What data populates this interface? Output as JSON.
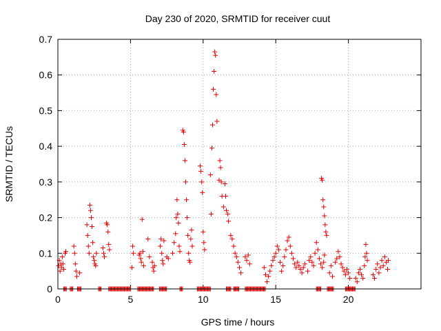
{
  "chart_data": {
    "type": "scatter",
    "title": "Day 230 of 2020, SRMTID for receiver cuut",
    "xlabel": "GPS time / hours",
    "ylabel": "SRMTID / TECUs",
    "xlim": [
      0,
      25
    ],
    "ylim": [
      0,
      0.7
    ],
    "x_ticks": [
      0,
      5,
      10,
      15,
      20
    ],
    "x_tick_labels": [
      "0",
      "5",
      "10",
      "15",
      "20"
    ],
    "y_ticks": [
      0,
      0.1,
      0.2,
      0.3,
      0.4,
      0.5,
      0.6,
      0.7
    ],
    "y_tick_labels": [
      "0",
      "0.1",
      "0.2",
      "0.3",
      "0.4",
      "0.5",
      "0.6",
      "0.7"
    ],
    "grid": true,
    "marker": "+",
    "marker_color": "#e00000",
    "series": [
      {
        "name": "SRMTID",
        "points": [
          [
            0.05,
            0.065
          ],
          [
            0.1,
            0.08
          ],
          [
            0.15,
            0.05
          ],
          [
            0.2,
            0.07
          ],
          [
            0.25,
            0.06
          ],
          [
            0.3,
            0.09
          ],
          [
            0.35,
            0.07
          ],
          [
            0.4,
            0.055
          ],
          [
            0.5,
            0.1
          ],
          [
            0.55,
            0.105
          ],
          [
            1.1,
            0.12
          ],
          [
            1.15,
            0.1
          ],
          [
            1.2,
            0.07
          ],
          [
            1.25,
            0.05
          ],
          [
            1.3,
            0.035
          ],
          [
            1.5,
            0.045
          ],
          [
            2.0,
            0.18
          ],
          [
            2.05,
            0.15
          ],
          [
            2.1,
            0.12
          ],
          [
            2.15,
            0.1
          ],
          [
            2.2,
            0.235
          ],
          [
            2.25,
            0.22
          ],
          [
            2.3,
            0.2
          ],
          [
            2.35,
            0.175
          ],
          [
            2.4,
            0.13
          ],
          [
            2.45,
            0.09
          ],
          [
            2.5,
            0.08
          ],
          [
            2.55,
            0.07
          ],
          [
            2.6,
            0.065
          ],
          [
            2.65,
            0.1
          ],
          [
            3.1,
            0.115
          ],
          [
            3.15,
            0.1
          ],
          [
            3.2,
            0.09
          ],
          [
            3.35,
            0.185
          ],
          [
            3.4,
            0.18
          ],
          [
            3.45,
            0.16
          ],
          [
            3.5,
            0.125
          ],
          [
            3.55,
            0.11
          ],
          [
            5.1,
            0.06
          ],
          [
            5.15,
            0.12
          ],
          [
            5.2,
            0.1
          ],
          [
            5.6,
            0.095
          ],
          [
            5.65,
            0.1
          ],
          [
            5.7,
            0.085
          ],
          [
            5.75,
            0.075
          ],
          [
            5.8,
            0.195
          ],
          [
            5.85,
            0.105
          ],
          [
            5.9,
            0.065
          ],
          [
            6.2,
            0.14
          ],
          [
            6.3,
            0.09
          ],
          [
            6.5,
            0.075
          ],
          [
            6.55,
            0.06
          ],
          [
            6.6,
            0.05
          ],
          [
            6.65,
            0.065
          ],
          [
            7.05,
            0.12
          ],
          [
            7.1,
            0.14
          ],
          [
            7.15,
            0.1
          ],
          [
            7.2,
            0.08
          ],
          [
            7.25,
            0.07
          ],
          [
            7.3,
            0.135
          ],
          [
            7.5,
            0.09
          ],
          [
            7.6,
            0.085
          ],
          [
            7.9,
            0.1
          ],
          [
            8.0,
            0.13
          ],
          [
            8.1,
            0.155
          ],
          [
            8.15,
            0.2
          ],
          [
            8.2,
            0.25
          ],
          [
            8.25,
            0.21
          ],
          [
            8.3,
            0.185
          ],
          [
            8.35,
            0.12
          ],
          [
            8.4,
            0.105
          ],
          [
            8.6,
            0.445
          ],
          [
            8.65,
            0.44
          ],
          [
            8.7,
            0.405
          ],
          [
            8.75,
            0.36
          ],
          [
            8.8,
            0.3
          ],
          [
            8.85,
            0.25
          ],
          [
            8.9,
            0.2
          ],
          [
            8.95,
            0.15
          ],
          [
            9.0,
            0.1
          ],
          [
            9.05,
            0.08
          ],
          [
            9.1,
            0.075
          ],
          [
            9.15,
            0.14
          ],
          [
            9.2,
            0.165
          ],
          [
            9.25,
            0.12
          ],
          [
            9.8,
            0.345
          ],
          [
            9.85,
            0.33
          ],
          [
            9.9,
            0.3
          ],
          [
            9.95,
            0.27
          ],
          [
            10.0,
            0.16
          ],
          [
            10.05,
            0.13
          ],
          [
            10.1,
            0.11
          ],
          [
            10.5,
            0.32
          ],
          [
            10.55,
            0.21
          ],
          [
            10.6,
            0.395
          ],
          [
            10.65,
            0.46
          ],
          [
            10.7,
            0.56
          ],
          [
            10.75,
            0.61
          ],
          [
            10.8,
            0.665
          ],
          [
            10.85,
            0.655
          ],
          [
            10.9,
            0.545
          ],
          [
            10.95,
            0.47
          ],
          [
            11.1,
            0.305
          ],
          [
            11.15,
            0.36
          ],
          [
            11.2,
            0.34
          ],
          [
            11.25,
            0.3
          ],
          [
            11.3,
            0.26
          ],
          [
            11.4,
            0.23
          ],
          [
            11.5,
            0.295
          ],
          [
            11.55,
            0.26
          ],
          [
            11.6,
            0.22
          ],
          [
            11.7,
            0.21
          ],
          [
            11.75,
            0.19
          ],
          [
            11.9,
            0.15
          ],
          [
            12.0,
            0.14
          ],
          [
            12.1,
            0.12
          ],
          [
            12.2,
            0.1
          ],
          [
            12.3,
            0.09
          ],
          [
            12.4,
            0.075
          ],
          [
            12.5,
            0.06
          ],
          [
            12.6,
            0.045
          ],
          [
            12.9,
            0.09
          ],
          [
            13.0,
            0.08
          ],
          [
            13.1,
            0.095
          ],
          [
            13.2,
            0.07
          ],
          [
            14.2,
            0.06
          ],
          [
            14.3,
            0.04
          ],
          [
            14.4,
            0.02
          ],
          [
            14.5,
            0.035
          ],
          [
            14.6,
            0.05
          ],
          [
            14.7,
            0.065
          ],
          [
            14.8,
            0.08
          ],
          [
            14.9,
            0.09
          ],
          [
            15.0,
            0.1
          ],
          [
            15.1,
            0.12
          ],
          [
            15.2,
            0.11
          ],
          [
            15.3,
            0.075
          ],
          [
            15.4,
            0.05
          ],
          [
            15.5,
            0.065
          ],
          [
            15.6,
            0.09
          ],
          [
            15.7,
            0.11
          ],
          [
            15.8,
            0.135
          ],
          [
            15.9,
            0.145
          ],
          [
            16.0,
            0.12
          ],
          [
            16.1,
            0.1
          ],
          [
            16.2,
            0.085
          ],
          [
            16.3,
            0.07
          ],
          [
            16.4,
            0.06
          ],
          [
            16.5,
            0.075
          ],
          [
            16.6,
            0.065
          ],
          [
            16.7,
            0.055
          ],
          [
            16.8,
            0.045
          ],
          [
            16.9,
            0.06
          ],
          [
            17.0,
            0.07
          ],
          [
            17.2,
            0.05
          ],
          [
            17.3,
            0.08
          ],
          [
            17.4,
            0.09
          ],
          [
            17.5,
            0.075
          ],
          [
            17.6,
            0.065
          ],
          [
            17.7,
            0.1
          ],
          [
            17.8,
            0.13
          ],
          [
            17.9,
            0.11
          ],
          [
            18.0,
            0.085
          ],
          [
            18.1,
            0.07
          ],
          [
            18.2,
            0.06
          ],
          [
            18.3,
            0.075
          ],
          [
            18.35,
            0.095
          ],
          [
            18.15,
            0.31
          ],
          [
            18.2,
            0.305
          ],
          [
            18.25,
            0.25
          ],
          [
            18.3,
            0.23
          ],
          [
            18.35,
            0.205
          ],
          [
            18.4,
            0.18
          ],
          [
            18.45,
            0.16
          ],
          [
            18.5,
            0.15
          ],
          [
            18.7,
            0.045
          ],
          [
            18.8,
            0.065
          ],
          [
            18.9,
            0.035
          ],
          [
            19.1,
            0.075
          ],
          [
            19.2,
            0.085
          ],
          [
            19.3,
            0.105
          ],
          [
            19.4,
            0.09
          ],
          [
            19.5,
            0.07
          ],
          [
            19.6,
            0.06
          ],
          [
            19.7,
            0.05
          ],
          [
            19.8,
            0.04
          ],
          [
            19.9,
            0.055
          ],
          [
            20.0,
            0.045
          ],
          [
            20.1,
            0.03
          ],
          [
            20.5,
            0.03
          ],
          [
            20.6,
            0.02
          ],
          [
            20.7,
            0.045
          ],
          [
            20.8,
            0.055
          ],
          [
            20.9,
            0.04
          ],
          [
            21.0,
            0.03
          ],
          [
            21.1,
            0.065
          ],
          [
            21.15,
            0.09
          ],
          [
            21.2,
            0.125
          ],
          [
            21.25,
            0.1
          ],
          [
            21.3,
            0.08
          ],
          [
            21.7,
            0.04
          ],
          [
            21.8,
            0.03
          ],
          [
            21.9,
            0.055
          ],
          [
            22.0,
            0.07
          ],
          [
            22.1,
            0.045
          ],
          [
            22.2,
            0.06
          ],
          [
            22.3,
            0.08
          ],
          [
            22.4,
            0.065
          ],
          [
            22.5,
            0.09
          ],
          [
            22.6,
            0.075
          ],
          [
            22.7,
            0.055
          ],
          [
            22.75,
            0.08
          ]
        ]
      }
    ],
    "zero_segments": [
      [
        0.4,
        0.6
      ],
      [
        0.85,
        1.05
      ],
      [
        1.35,
        1.6
      ],
      [
        2.8,
        3.0
      ],
      [
        3.5,
        5.0
      ],
      [
        5.5,
        6.6
      ],
      [
        7.0,
        7.5
      ],
      [
        8.4,
        8.6
      ],
      [
        9.6,
        10.5
      ],
      [
        11.6,
        11.9
      ],
      [
        12.1,
        12.5
      ],
      [
        12.9,
        14.3
      ],
      [
        17.8,
        18.1
      ],
      [
        18.55,
        19.0
      ],
      [
        19.8,
        20.5
      ]
    ]
  }
}
